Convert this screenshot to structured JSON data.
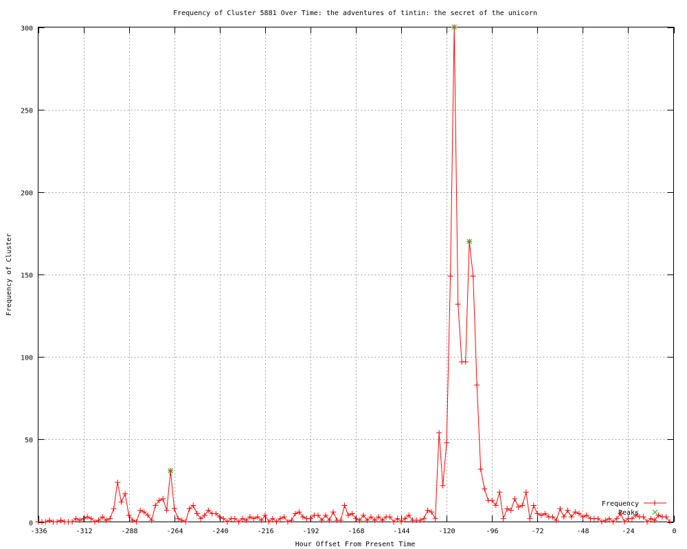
{
  "chart_data": {
    "type": "line",
    "title": "Frequency of Cluster 5881 Over Time: the adventures of tintin: the secret of the unicorn",
    "xlabel": "Hour Offset From Present Time",
    "ylabel": "Frequency of Cluster",
    "xlim": [
      -336,
      0
    ],
    "ylim": [
      0,
      300
    ],
    "xticks": [
      -336,
      -312,
      -288,
      -264,
      -240,
      -216,
      -192,
      -168,
      -144,
      -120,
      -96,
      -72,
      -48,
      -24,
      0
    ],
    "yticks": [
      0,
      50,
      100,
      150,
      200,
      250,
      300
    ],
    "grid": true,
    "legend_position": "bottom-right",
    "series": [
      {
        "name": "Frequency",
        "color": "#ff0000",
        "marker": "plus",
        "x": [
          -336,
          -334,
          -332,
          -330,
          -328,
          -326,
          -324,
          -322,
          -320,
          -318,
          -316,
          -314,
          -312,
          -310,
          -308,
          -306,
          -304,
          -302,
          -300,
          -298,
          -296,
          -294,
          -292,
          -290,
          -288,
          -286,
          -284,
          -282,
          -280,
          -278,
          -276,
          -274,
          -272,
          -270,
          -268,
          -266,
          -264,
          -262,
          -260,
          -258,
          -256,
          -254,
          -252,
          -250,
          -248,
          -246,
          -244,
          -242,
          -240,
          -238,
          -236,
          -234,
          -232,
          -230,
          -228,
          -226,
          -224,
          -222,
          -220,
          -218,
          -216,
          -214,
          -212,
          -210,
          -208,
          -206,
          -204,
          -202,
          -200,
          -198,
          -196,
          -194,
          -192,
          -190,
          -188,
          -186,
          -184,
          -182,
          -180,
          -178,
          -176,
          -174,
          -172,
          -170,
          -168,
          -166,
          -164,
          -162,
          -160,
          -158,
          -156,
          -154,
          -152,
          -150,
          -148,
          -146,
          -144,
          -142,
          -140,
          -138,
          -136,
          -134,
          -132,
          -130,
          -128,
          -126,
          -124,
          -122,
          -120,
          -118,
          -116,
          -114,
          -112,
          -110,
          -108,
          -106,
          -104,
          -102,
          -100,
          -98,
          -96,
          -94,
          -92,
          -90,
          -88,
          -86,
          -84,
          -82,
          -80,
          -78,
          -76,
          -74,
          -72,
          -70,
          -68,
          -66,
          -64,
          -62,
          -60,
          -58,
          -56,
          -54,
          -52,
          -50,
          -48,
          -46,
          -44,
          -42,
          -40,
          -38,
          -36,
          -34,
          -32,
          -30,
          -28,
          -26,
          -24,
          -22,
          -20,
          -18,
          -16,
          -14,
          -12,
          -10,
          -8,
          -6,
          -4,
          -2
        ],
        "y": [
          0,
          0,
          0,
          1,
          0,
          0,
          1,
          0,
          0,
          0,
          2,
          1,
          2,
          3,
          2,
          0,
          1,
          3,
          1,
          2,
          8,
          24,
          12,
          17,
          4,
          1,
          0,
          7,
          6,
          4,
          1,
          10,
          13,
          14,
          7,
          31,
          8,
          2,
          1,
          0,
          8,
          10,
          5,
          2,
          4,
          7,
          5,
          5,
          3,
          2,
          0,
          2,
          2,
          0,
          2,
          1,
          3,
          2,
          3,
          1,
          4,
          0,
          2,
          0,
          2,
          3,
          0,
          1,
          5,
          6,
          3,
          2,
          2,
          4,
          4,
          1,
          4,
          1,
          6,
          1,
          1,
          10,
          4,
          5,
          2,
          1,
          4,
          1,
          3,
          1,
          3,
          1,
          3,
          3,
          0,
          2,
          0,
          2,
          4,
          1,
          1,
          1,
          2,
          7,
          6,
          2,
          54,
          22,
          48,
          149,
          300,
          132,
          97,
          97,
          170,
          149,
          83,
          32,
          20,
          13,
          13,
          10,
          18,
          2,
          8,
          7,
          14,
          9,
          10,
          18,
          2,
          10,
          5,
          4,
          5,
          3,
          3,
          1,
          8,
          3,
          7,
          3,
          6,
          5,
          3,
          4,
          2,
          2,
          2,
          0,
          1,
          2,
          0,
          2,
          5,
          0,
          2,
          2,
          4,
          3,
          3,
          0,
          2,
          1,
          4,
          3,
          3,
          0
        ]
      },
      {
        "name": "Peaks",
        "color": "#00c000",
        "marker": "x",
        "x": [
          -266,
          -116,
          -108
        ],
        "y": [
          31,
          300,
          170
        ]
      }
    ]
  }
}
